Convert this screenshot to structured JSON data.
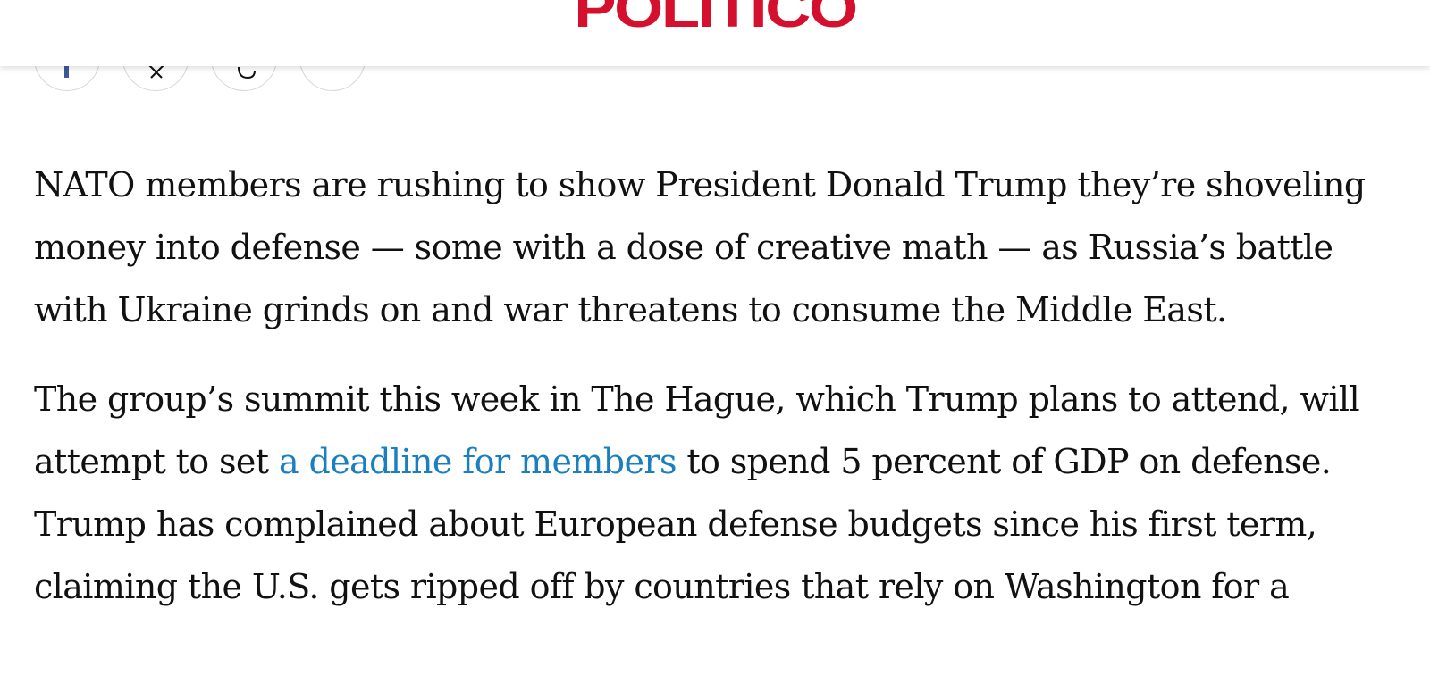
{
  "header": {
    "logo_text": "POLITICO",
    "logo_color": "#d5102e"
  },
  "share": {
    "buttons": [
      "facebook-icon",
      "x-icon",
      "link-icon",
      "more-icon"
    ]
  },
  "article": {
    "paragraph_1": "NATO members are rushing to show President Donald Trump they’re shoveling money into defense — some with a dose of creative math — as Russia’s battle with Ukraine grinds on and war threatens to consume the Middle East.",
    "paragraph_2_before_link": "The group’s summit this week in The Hague, which Trump plans to attend, will attempt to set ",
    "paragraph_2_link": "a deadline for members",
    "paragraph_2_after_link": " to spend 5 percent of GDP on defense. Trump has complained about European defense budgets since his first term, claiming the U.S. gets ripped off by countries that rely on Washington for a",
    "link_color": "#1a7fc1"
  }
}
